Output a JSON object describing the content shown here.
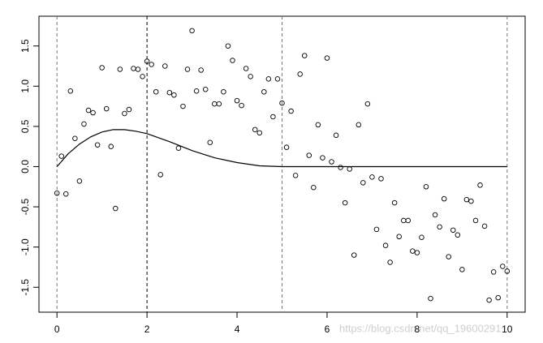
{
  "chart_data": {
    "type": "scatter",
    "x": [
      0,
      0.1,
      0.2,
      0.3,
      0.4,
      0.5,
      0.6,
      0.7,
      0.8,
      0.9,
      1,
      1.1,
      1.2,
      1.3,
      1.4,
      1.5,
      1.6,
      1.7,
      1.8,
      1.9,
      2,
      2.1,
      2.2,
      2.3,
      2.4,
      2.5,
      2.6,
      2.7,
      2.8,
      2.9,
      3,
      3.1,
      3.2,
      3.3,
      3.4,
      3.5,
      3.6,
      3.7,
      3.8,
      3.9,
      4,
      4.1,
      4.2,
      4.3,
      4.4,
      4.5,
      4.6,
      4.7,
      4.8,
      4.9,
      5,
      5.1,
      5.2,
      5.3,
      5.4,
      5.5,
      5.6,
      5.7,
      5.8,
      5.9,
      6,
      6.1,
      6.2,
      6.3,
      6.4,
      6.5,
      6.6,
      6.7,
      6.8,
      6.9,
      7,
      7.1,
      7.2,
      7.3,
      7.4,
      7.5,
      7.6,
      7.7,
      7.8,
      7.9,
      8,
      8.1,
      8.2,
      8.3,
      8.4,
      8.5,
      8.6,
      8.7,
      8.8,
      8.9,
      9,
      9.1,
      9.2,
      9.3,
      9.4,
      9.5,
      9.6,
      9.7,
      9.8,
      9.9,
      10
    ],
    "values": [
      -0.33,
      0.13,
      -0.34,
      0.94,
      0.35,
      -0.18,
      0.53,
      0.7,
      0.67,
      0.27,
      1.23,
      0.72,
      0.25,
      -0.52,
      1.21,
      0.66,
      0.71,
      1.22,
      1.21,
      1.12,
      1.31,
      1.27,
      0.93,
      -0.1,
      1.25,
      0.92,
      0.89,
      0.23,
      0.75,
      1.21,
      1.69,
      0.94,
      1.2,
      0.96,
      0.3,
      0.78,
      0.78,
      0.93,
      1.5,
      1.32,
      0.82,
      0.76,
      1.22,
      1.12,
      0.46,
      0.42,
      0.93,
      1.09,
      0.62,
      1.09,
      0.79,
      0.24,
      0.69,
      -0.11,
      1.15,
      1.38,
      0.14,
      -0.26,
      0.52,
      0.11,
      1.35,
      0.06,
      0.39,
      -0.01,
      -0.45,
      -0.03,
      -1.1,
      0.52,
      -0.2,
      0.78,
      -0.13,
      -0.78,
      -0.15,
      -0.98,
      -1.19,
      -0.45,
      -0.87,
      -0.67,
      -0.67,
      -1.05,
      -1.07,
      -0.88,
      -0.25,
      -1.64,
      -0.6,
      -0.75,
      -0.4,
      -1.12,
      -0.79,
      -0.85,
      -1.28,
      -0.41,
      -0.43,
      -0.67,
      -0.23,
      -0.74,
      -1.66,
      -1.31,
      -1.63,
      -1.24,
      -1.3
    ],
    "color": "#000000",
    "curve": {
      "x": [
        0,
        0.25,
        0.5,
        0.75,
        1,
        1.25,
        1.5,
        1.75,
        2,
        2.5,
        3,
        3.5,
        4,
        4.5,
        5,
        10
      ],
      "values": [
        0,
        0.16,
        0.28,
        0.37,
        0.43,
        0.46,
        0.46,
        0.44,
        0.41,
        0.31,
        0.2,
        0.11,
        0.05,
        0.01,
        0,
        0
      ],
      "color": "#000000"
    },
    "vlines": [
      {
        "value": 0,
        "color": "#777777"
      },
      {
        "value": 2,
        "color": "#000000"
      },
      {
        "value": 5,
        "color": "#777777"
      },
      {
        "value": 10,
        "color": "#777777"
      }
    ],
    "xlim": [
      -0.4,
      10.4
    ],
    "ylim": [
      -1.81,
      1.87
    ],
    "xticks": [
      0,
      2,
      4,
      6,
      8,
      10
    ],
    "yticks": [
      -1.5,
      {
        "value": -1,
        "label": "-1.0"
      },
      -0.5,
      {
        "value": 0,
        "label": "0.0"
      },
      0.5,
      {
        "value": 1,
        "label": "1.0"
      },
      1.5
    ],
    "watermark": "https://blog.csdn.net/qq_19600291"
  }
}
